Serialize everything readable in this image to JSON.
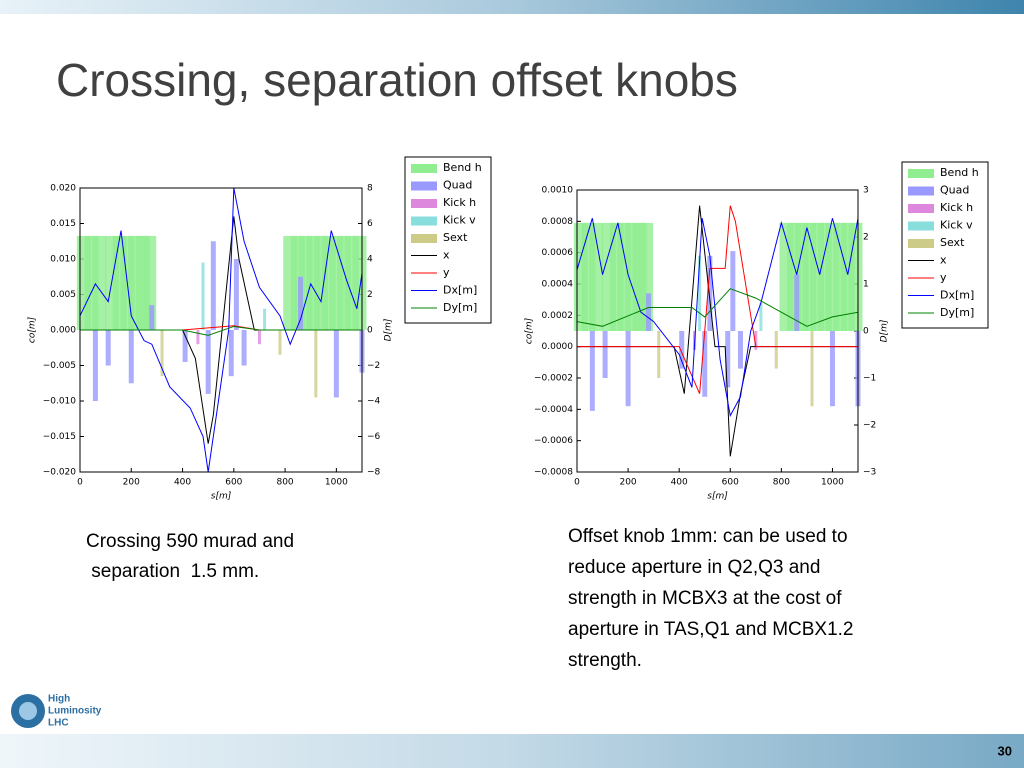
{
  "title": "Crossing, separation offset knobs",
  "captions": [
    [
      "Crossing 590 murad and",
      " separation  1.5 mm."
    ],
    [
      "Offset knob 1mm: can be used to",
      "reduce aperture in Q2,Q3 and",
      "strength in MCBX3 at the cost of",
      "aperture in TAS,Q1 and MCBX1.2",
      "strength."
    ]
  ],
  "logo": [
    "High",
    "Luminosity",
    "LHC"
  ],
  "page_number": "30",
  "chart_data": [
    {
      "type": "line",
      "xlabel": "s[m]",
      "ylabel": "co[m]",
      "y2label": "D[m]",
      "xlim": [
        0,
        1100
      ],
      "xticks": [
        0,
        200,
        400,
        600,
        800,
        1000
      ],
      "ylim": [
        -0.02,
        0.02
      ],
      "yticks": [
        {
          "value": -0.02,
          "label": "−0.020"
        },
        {
          "value": -0.015,
          "label": "−0.015"
        },
        {
          "value": -0.01,
          "label": "−0.010"
        },
        {
          "value": -0.005,
          "label": "−0.005"
        },
        {
          "value": 0,
          "label": "0.000"
        },
        {
          "value": 0.005,
          "label": "0.005"
        },
        {
          "value": 0.01,
          "label": "0.010"
        },
        {
          "value": 0.015,
          "label": "0.015"
        },
        {
          "value": 0.02,
          "label": "0.020"
        }
      ],
      "y2lim": [
        -8,
        8
      ],
      "y2ticks": [
        {
          "value": -8,
          "label": "−8"
        },
        {
          "value": -6,
          "label": "−6"
        },
        {
          "value": -4,
          "label": "−4"
        },
        {
          "value": -2,
          "label": "−2"
        },
        0,
        2,
        4,
        6,
        8
      ],
      "series": [
        {
          "name": "Bend h",
          "color": "#90ee90",
          "kind": "bar",
          "axis": "y2",
          "x": [
            15,
            45,
            75,
            125,
            155,
            185,
            215,
            245,
            270,
            820,
            850,
            880,
            910,
            940,
            970,
            1000,
            1030,
            1060,
            1090
          ],
          "values": [
            5.3,
            5.3,
            5.3,
            5.3,
            5.3,
            5.3,
            5.3,
            5.3,
            5.3,
            5.3,
            5.3,
            5.3,
            5.3,
            5.3,
            5.3,
            5.3,
            5.3,
            5.3,
            5.3
          ]
        },
        {
          "name": "Quad",
          "color": "#9999ff",
          "kind": "bar",
          "axis": "y2",
          "x": [
            60,
            110,
            200,
            280,
            410,
            500,
            520,
            590,
            610,
            640,
            860,
            1000,
            1100
          ],
          "values": [
            -4,
            -2,
            -3,
            1.4,
            -1.8,
            -3.6,
            5,
            -2.6,
            4,
            -2,
            3,
            -3.8,
            -2.4
          ]
        },
        {
          "name": "Kick h",
          "color": "#dd88dd",
          "kind": "bar",
          "axis": "y2",
          "x": [
            460,
            700
          ],
          "values": [
            -0.8,
            -0.8
          ]
        },
        {
          "name": "Kick v",
          "color": "#88dddd",
          "kind": "bar",
          "axis": "y2",
          "x": [
            480,
            720
          ],
          "values": [
            3.8,
            1.2
          ]
        },
        {
          "name": "Sext",
          "color": "#cccc88",
          "kind": "bar",
          "axis": "y2",
          "x": [
            320,
            780,
            920
          ],
          "values": [
            -2.6,
            -1.4,
            -3.8
          ]
        },
        {
          "name": "x",
          "color": "#000000",
          "kind": "line",
          "x": [
            0,
            400,
            450,
            500,
            520,
            560,
            600,
            620,
            680,
            1100
          ],
          "values": [
            0,
            0,
            -0.004,
            -0.016,
            -0.012,
            0.002,
            0.016,
            0.01,
            0,
            0
          ]
        },
        {
          "name": "y",
          "color": "#ff0000",
          "kind": "line",
          "x": [
            0,
            400,
            600,
            700,
            1100
          ],
          "values": [
            0,
            0,
            0.0006,
            0,
            0
          ]
        },
        {
          "name": "Dx[m]",
          "color": "#0000ff",
          "kind": "line",
          "axis": "y2",
          "x": [
            0,
            60,
            110,
            160,
            200,
            250,
            280,
            350,
            430,
            480,
            500,
            540,
            580,
            600,
            640,
            700,
            780,
            820,
            860,
            900,
            940,
            980,
            1040,
            1080,
            1100
          ],
          "values": [
            0.8,
            2.6,
            1.6,
            5.6,
            0.8,
            -0.6,
            -0.8,
            -3.2,
            -4.4,
            -6,
            -8,
            -4,
            0,
            8,
            5,
            2.4,
            0.8,
            -0.8,
            0.6,
            2.6,
            1.6,
            5.6,
            2.8,
            1.2,
            3.2
          ]
        },
        {
          "name": "Dy[m]",
          "color": "#008000",
          "kind": "line",
          "axis": "y2",
          "x": [
            0,
            400,
            500,
            600,
            700,
            1100
          ],
          "values": [
            0,
            0,
            -0.3,
            0.2,
            0,
            0
          ]
        }
      ]
    },
    {
      "type": "line",
      "xlabel": "s[m]",
      "ylabel": "co[m]",
      "y2label": "D[m]",
      "xlim": [
        0,
        1100
      ],
      "xticks": [
        0,
        200,
        400,
        600,
        800,
        1000
      ],
      "ylim": [
        -0.0008,
        0.001
      ],
      "yticks": [
        {
          "value": -0.0008,
          "label": "−0.0008"
        },
        {
          "value": -0.0006,
          "label": "−0.0006"
        },
        {
          "value": -0.0004,
          "label": "−0.0004"
        },
        {
          "value": -0.0002,
          "label": "−0.0002"
        },
        {
          "value": 0,
          "label": "0.0000"
        },
        {
          "value": 0.0002,
          "label": "0.0002"
        },
        {
          "value": 0.0004,
          "label": "0.0004"
        },
        {
          "value": 0.0006,
          "label": "0.0006"
        },
        {
          "value": 0.0008,
          "label": "0.0008"
        },
        {
          "value": 0.001,
          "label": "0.0010"
        }
      ],
      "y2lim": [
        -3,
        3
      ],
      "y2ticks": [
        {
          "value": -3,
          "label": "−3"
        },
        {
          "value": -2,
          "label": "−2"
        },
        {
          "value": -1,
          "label": "−1"
        },
        0,
        1,
        2,
        3
      ],
      "series": [
        {
          "name": "Bend h",
          "color": "#90ee90",
          "kind": "bar",
          "axis": "y2",
          "x": [
            15,
            45,
            75,
            125,
            155,
            185,
            215,
            245,
            270,
            820,
            850,
            880,
            910,
            940,
            970,
            1000,
            1030,
            1060,
            1090
          ],
          "values": [
            2.3,
            2.3,
            2.3,
            2.3,
            2.3,
            2.3,
            2.3,
            2.3,
            2.3,
            2.3,
            2.3,
            2.3,
            2.3,
            2.3,
            2.3,
            2.3,
            2.3,
            2.3,
            2.3
          ]
        },
        {
          "name": "Quad",
          "color": "#9999ff",
          "kind": "bar",
          "axis": "y2",
          "x": [
            60,
            110,
            200,
            280,
            410,
            500,
            520,
            590,
            610,
            640,
            860,
            1000,
            1100
          ],
          "values": [
            -1.7,
            -1,
            -1.6,
            0.8,
            -0.8,
            -1.4,
            1.6,
            -1.2,
            1.7,
            -0.8,
            1.2,
            -1.6,
            -1.6
          ]
        },
        {
          "name": "Kick h",
          "color": "#dd88dd",
          "kind": "bar",
          "axis": "y2",
          "x": [
            460,
            700
          ],
          "values": [
            -0.4,
            -0.4
          ]
        },
        {
          "name": "Kick v",
          "color": "#88dddd",
          "kind": "bar",
          "axis": "y2",
          "x": [
            480,
            720
          ],
          "values": [
            1.6,
            0.6
          ]
        },
        {
          "name": "Sext",
          "color": "#cccc88",
          "kind": "bar",
          "axis": "y2",
          "x": [
            320,
            780,
            920
          ],
          "values": [
            -1,
            -0.8,
            -1.6
          ]
        },
        {
          "name": "x",
          "color": "#000000",
          "kind": "line",
          "x": [
            0,
            380,
            420,
            480,
            500,
            540,
            580,
            600,
            640,
            680,
            1100
          ],
          "values": [
            0,
            0,
            -0.0003,
            0.0009,
            0.0006,
            0,
            0,
            -0.0007,
            -0.0003,
            0,
            0
          ]
        },
        {
          "name": "y",
          "color": "#ff0000",
          "kind": "line",
          "x": [
            0,
            400,
            480,
            520,
            580,
            600,
            620,
            700,
            1100
          ],
          "values": [
            0,
            0,
            -0.0003,
            0.0005,
            0.0005,
            0.0009,
            0.0008,
            0,
            0
          ]
        },
        {
          "name": "Dx[m]",
          "color": "#0000ff",
          "kind": "line",
          "axis": "y2",
          "x": [
            0,
            60,
            100,
            160,
            200,
            250,
            300,
            400,
            450,
            490,
            520,
            560,
            600,
            640,
            680,
            720,
            800,
            860,
            900,
            950,
            1000,
            1060,
            1100
          ],
          "values": [
            1.3,
            2.4,
            1.2,
            2.3,
            1.2,
            0.4,
            0.2,
            -0.5,
            -1.2,
            2.4,
            1.6,
            -0.6,
            -1.8,
            -1.4,
            0,
            0.6,
            2.3,
            1.2,
            2.2,
            1.2,
            2.4,
            1.2,
            2.4
          ]
        },
        {
          "name": "Dy[m]",
          "color": "#008000",
          "kind": "line",
          "axis": "y2",
          "x": [
            0,
            100,
            280,
            450,
            500,
            600,
            700,
            900,
            1000,
            1100
          ],
          "values": [
            0.2,
            0.1,
            0.5,
            0.5,
            0.3,
            0.9,
            0.7,
            0.1,
            0.3,
            0.4
          ]
        }
      ]
    }
  ]
}
